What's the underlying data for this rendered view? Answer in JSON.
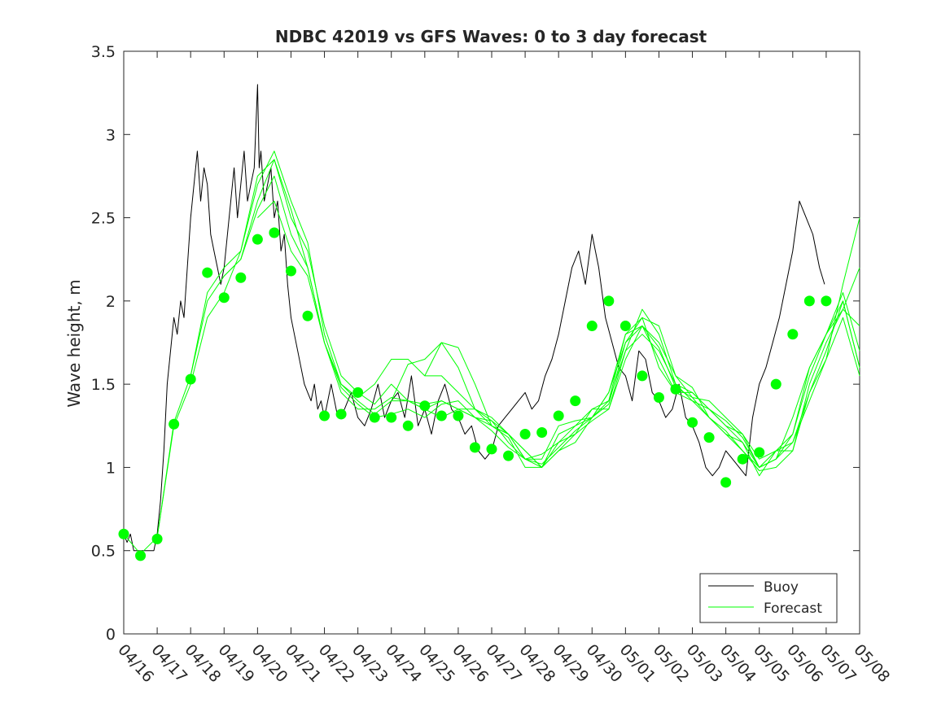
{
  "chart_data": {
    "type": "line",
    "title": "NDBC 42019 vs GFS Waves: 0 to 3 day forecast",
    "xlabel": "",
    "ylabel": "Wave height, m",
    "xlim": [
      0,
      22
    ],
    "ylim": [
      0,
      3.5
    ],
    "yticks": [
      0,
      0.5,
      1,
      1.5,
      2,
      2.5,
      3,
      3.5
    ],
    "x_tick_labels": [
      "04/16",
      "04/17",
      "04/18",
      "04/19",
      "04/20",
      "04/21",
      "04/22",
      "04/23",
      "04/24",
      "04/25",
      "04/26",
      "04/27",
      "04/28",
      "04/29",
      "04/30",
      "05/01",
      "05/02",
      "05/03",
      "05/04",
      "05/05",
      "05/06",
      "05/07",
      "05/08"
    ],
    "x_units": "days since 04/16",
    "legend": {
      "position": "bottom-right",
      "entries": [
        "Buoy",
        "Forecast"
      ]
    },
    "colors": {
      "buoy": "#000000",
      "forecast": "#00ff00"
    },
    "series": [
      {
        "name": "Buoy",
        "x": [
          0,
          0.1,
          0.2,
          0.3,
          0.5,
          0.7,
          0.9,
          1.0,
          1.1,
          1.2,
          1.3,
          1.4,
          1.5,
          1.6,
          1.7,
          1.8,
          1.9,
          2.0,
          2.1,
          2.2,
          2.3,
          2.4,
          2.5,
          2.6,
          2.7,
          2.8,
          2.9,
          3.0,
          3.1,
          3.2,
          3.3,
          3.4,
          3.5,
          3.6,
          3.7,
          3.8,
          3.9,
          4.0,
          4.05,
          4.1,
          4.2,
          4.3,
          4.4,
          4.5,
          4.6,
          4.7,
          4.8,
          4.9,
          5.0,
          5.1,
          5.2,
          5.3,
          5.4,
          5.5,
          5.6,
          5.7,
          5.8,
          5.9,
          6.0,
          6.2,
          6.4,
          6.6,
          6.8,
          7.0,
          7.2,
          7.4,
          7.6,
          7.8,
          8.0,
          8.2,
          8.4,
          8.6,
          8.8,
          9.0,
          9.2,
          9.4,
          9.6,
          9.8,
          10.0,
          10.2,
          10.4,
          10.6,
          10.8,
          11.0,
          11.2,
          11.4,
          11.6,
          11.8,
          12.0,
          12.2,
          12.4,
          12.6,
          12.8,
          13.0,
          13.2,
          13.4,
          13.6,
          13.8,
          14.0,
          14.2,
          14.4,
          14.6,
          14.8,
          15.0,
          15.2,
          15.4,
          15.6,
          15.8,
          16.0,
          16.2,
          16.4,
          16.6,
          16.8,
          17.0,
          17.2,
          17.4,
          17.6,
          17.8,
          18.0,
          18.2,
          18.4,
          18.6,
          18.8,
          19.0,
          19.2,
          19.4,
          19.6,
          19.8,
          20.0,
          20.2,
          20.4,
          20.6,
          20.8,
          20.95
        ],
        "y": [
          0.6,
          0.55,
          0.6,
          0.5,
          0.5,
          0.5,
          0.5,
          0.6,
          0.8,
          1.1,
          1.5,
          1.7,
          1.9,
          1.8,
          2.0,
          1.9,
          2.2,
          2.5,
          2.7,
          2.9,
          2.6,
          2.8,
          2.7,
          2.4,
          2.3,
          2.2,
          2.1,
          2.2,
          2.4,
          2.6,
          2.8,
          2.5,
          2.7,
          2.9,
          2.6,
          2.7,
          2.8,
          3.3,
          2.8,
          2.9,
          2.6,
          2.7,
          2.8,
          2.5,
          2.6,
          2.3,
          2.4,
          2.1,
          1.9,
          1.8,
          1.7,
          1.6,
          1.5,
          1.45,
          1.4,
          1.5,
          1.35,
          1.4,
          1.3,
          1.5,
          1.3,
          1.35,
          1.45,
          1.3,
          1.25,
          1.35,
          1.5,
          1.3,
          1.4,
          1.45,
          1.3,
          1.55,
          1.25,
          1.35,
          1.2,
          1.4,
          1.5,
          1.35,
          1.3,
          1.2,
          1.25,
          1.1,
          1.05,
          1.1,
          1.25,
          1.3,
          1.35,
          1.4,
          1.45,
          1.35,
          1.4,
          1.55,
          1.65,
          1.8,
          2.0,
          2.2,
          2.3,
          2.1,
          2.4,
          2.2,
          1.9,
          1.75,
          1.6,
          1.55,
          1.4,
          1.7,
          1.65,
          1.45,
          1.4,
          1.3,
          1.35,
          1.5,
          1.3,
          1.25,
          1.15,
          1.0,
          0.95,
          1.0,
          1.1,
          1.05,
          1.0,
          0.95,
          1.3,
          1.5,
          1.6,
          1.75,
          1.9,
          2.1,
          2.3,
          2.6,
          2.5,
          2.4,
          2.2,
          2.1
        ]
      },
      {
        "name": "Forecast",
        "x": [
          0,
          0.5,
          1.0,
          1.5,
          2.0,
          2.5,
          3.0,
          3.5,
          4.0,
          4.5,
          5.0,
          5.5,
          6.0,
          6.5,
          7.0,
          7.5,
          8.0,
          8.5,
          9.0,
          9.5,
          10.0,
          10.5,
          11.0,
          11.5,
          12.0,
          12.5,
          13.0,
          13.5,
          14.0,
          14.5,
          15.0,
          15.5,
          16.0,
          16.5,
          17.0,
          17.5,
          18.0,
          18.5,
          19.0,
          19.5,
          20.0,
          20.5,
          21.0,
          21.5,
          22.0
        ],
        "y": [
          0.6,
          0.48,
          0.58,
          1.27,
          1.55,
          2.0,
          2.15,
          2.25,
          2.6,
          2.85,
          2.55,
          2.2,
          1.75,
          1.45,
          1.35,
          1.35,
          1.42,
          1.4,
          1.35,
          1.3,
          1.35,
          1.3,
          1.28,
          1.2,
          1.05,
          1.05,
          1.25,
          1.28,
          1.3,
          1.45,
          1.75,
          1.9,
          1.85,
          1.55,
          1.42,
          1.4,
          1.3,
          1.2,
          1.0,
          1.1,
          1.1,
          1.5,
          1.75,
          1.95,
          1.85
        ]
      },
      {
        "name": "Forecast",
        "x": [
          1.0,
          1.5,
          2.0,
          2.5,
          3.0,
          3.5,
          4.0,
          4.5,
          5.0,
          5.5,
          6.0,
          6.5,
          7.0,
          7.5,
          8.0,
          8.5,
          9.0,
          9.5,
          10.0,
          10.5,
          11.0,
          11.5,
          12.0,
          12.5,
          13.0,
          13.5,
          14.0,
          14.5,
          15.0,
          15.5,
          16.0,
          16.5,
          17.0,
          17.5,
          18.0,
          18.5,
          19.0,
          19.5,
          20.0,
          20.5,
          21.0,
          21.5,
          22.0
        ],
        "y": [
          0.58,
          1.25,
          1.5,
          1.9,
          2.05,
          2.3,
          2.7,
          2.9,
          2.6,
          2.35,
          1.8,
          1.5,
          1.42,
          1.5,
          1.65,
          1.65,
          1.55,
          1.55,
          1.45,
          1.35,
          1.28,
          1.15,
          1.05,
          1.0,
          1.2,
          1.25,
          1.3,
          1.4,
          1.7,
          1.95,
          1.8,
          1.5,
          1.4,
          1.35,
          1.25,
          1.15,
          1.0,
          1.05,
          1.15,
          1.45,
          1.7,
          2.0,
          1.6
        ]
      },
      {
        "name": "Forecast",
        "x": [
          2.0,
          2.5,
          3.0,
          3.5,
          4.0,
          4.5,
          5.0,
          5.5,
          6.0,
          6.5,
          7.0,
          7.5,
          8.0,
          8.5,
          9.0,
          9.5,
          10.0,
          10.5,
          11.0,
          11.5,
          12.0,
          12.5,
          13.0,
          13.5,
          14.0,
          14.5,
          15.0,
          15.5,
          16.0,
          16.5,
          17.0,
          17.5,
          18.0,
          18.5,
          19.0,
          19.5,
          20.0,
          20.5,
          21.0,
          21.5,
          22.0
        ],
        "y": [
          1.55,
          2.05,
          2.2,
          2.3,
          2.75,
          2.85,
          2.5,
          2.3,
          1.85,
          1.55,
          1.45,
          1.38,
          1.5,
          1.4,
          1.38,
          1.4,
          1.35,
          1.35,
          1.25,
          1.2,
          1.1,
          1.0,
          1.1,
          1.2,
          1.28,
          1.35,
          1.65,
          1.85,
          1.75,
          1.55,
          1.48,
          1.3,
          1.2,
          1.15,
          0.95,
          1.1,
          1.15,
          1.4,
          1.65,
          1.9,
          1.55
        ]
      },
      {
        "name": "Forecast",
        "x": [
          3.0,
          3.5,
          4.0,
          4.5,
          5.0,
          5.5,
          6.0,
          6.5,
          7.0,
          7.5,
          8.0,
          8.5,
          9.0,
          9.5,
          10.0,
          10.5,
          11.0,
          11.5,
          12.0,
          12.5,
          13.0,
          13.5,
          14.0,
          14.5,
          15.0,
          15.5,
          16.0,
          16.5,
          17.0,
          17.5,
          18.0,
          18.5,
          19.0,
          19.5,
          20.0,
          20.5,
          21.0,
          21.5,
          22.0
        ],
        "y": [
          2.15,
          2.25,
          2.55,
          2.75,
          2.4,
          2.2,
          1.75,
          1.5,
          1.4,
          1.32,
          1.4,
          1.4,
          1.35,
          1.4,
          1.35,
          1.3,
          1.25,
          1.2,
          1.1,
          1.0,
          1.15,
          1.2,
          1.35,
          1.35,
          1.7,
          1.8,
          1.7,
          1.5,
          1.45,
          1.35,
          1.28,
          1.18,
          1.0,
          1.05,
          1.2,
          1.55,
          1.8,
          2.05,
          1.7
        ]
      },
      {
        "name": "Forecast",
        "x": [
          4.0,
          4.5,
          5.0,
          5.5,
          6.0,
          6.5,
          7.0,
          7.5,
          8.0,
          8.5,
          9.0,
          9.5,
          10.0,
          10.5,
          11.0,
          11.5,
          12.0,
          12.5,
          13.0,
          13.5,
          14.0,
          14.5,
          15.0,
          15.5,
          16.0,
          16.5,
          17.0,
          17.5,
          18.0,
          18.5,
          19.0,
          19.5,
          20.0,
          20.5,
          21.0,
          21.5,
          22.0
        ],
        "y": [
          2.5,
          2.6,
          2.3,
          2.15,
          1.75,
          1.48,
          1.38,
          1.3,
          1.32,
          1.35,
          1.3,
          1.38,
          1.4,
          1.3,
          1.22,
          1.12,
          1.05,
          1.02,
          1.12,
          1.22,
          1.3,
          1.38,
          1.75,
          1.85,
          1.72,
          1.48,
          1.42,
          1.3,
          1.22,
          1.1,
          0.98,
          1.0,
          1.1,
          1.45,
          1.65,
          2.1,
          2.5
        ]
      },
      {
        "name": "Forecast",
        "x": [
          8.0,
          8.5,
          9.0,
          9.5,
          10.0,
          10.5,
          11.0,
          11.5,
          12.0,
          12.5,
          13.0,
          13.5,
          14.0,
          14.5,
          15.0,
          15.5,
          16.0,
          16.5,
          17.0,
          17.5,
          18.0,
          18.5,
          19.0,
          19.5,
          20.0,
          20.5,
          21.0,
          21.5,
          22.0
        ],
        "y": [
          1.4,
          1.62,
          1.65,
          1.75,
          1.6,
          1.35,
          1.3,
          1.2,
          1.05,
          1.08,
          1.15,
          1.25,
          1.35,
          1.4,
          1.8,
          1.85,
          1.65,
          1.45,
          1.45,
          1.35,
          1.25,
          1.2,
          1.05,
          1.1,
          1.2,
          1.6,
          1.8,
          1.95,
          2.2
        ]
      },
      {
        "name": "Forecast",
        "x": [
          9.0,
          9.5,
          10.0,
          10.5,
          11.0,
          11.5,
          12.0,
          12.5,
          13.0,
          13.5,
          14.0,
          14.5,
          15.0,
          15.5,
          16.0,
          16.5,
          17.0,
          17.5,
          18.0,
          18.5,
          19.0,
          19.5,
          20.0,
          20.5,
          21.0,
          21.5,
          22.0
        ],
        "y": [
          1.55,
          1.75,
          1.72,
          1.5,
          1.25,
          1.18,
          1.0,
          1.0,
          1.1,
          1.15,
          1.3,
          1.45,
          1.8,
          1.9,
          1.6,
          1.45,
          1.4,
          1.3,
          1.2,
          1.1,
          1.0,
          1.05,
          1.3,
          1.6,
          1.8,
          2.0,
          1.6
        ]
      }
    ],
    "markers": {
      "name": "Forecast",
      "x": [
        0,
        0.5,
        1.0,
        1.5,
        2.0,
        2.5,
        3.0,
        3.5,
        4.0,
        4.5,
        5.0,
        5.5,
        6.0,
        6.5,
        7.0,
        7.5,
        8.0,
        8.5,
        9.0,
        9.5,
        10.0,
        10.5,
        11.0,
        11.5,
        12.0,
        12.5,
        13.0,
        13.5,
        14.0,
        14.5,
        15.0,
        15.5,
        16.0,
        16.5,
        17.0,
        17.5,
        18.0,
        18.5,
        19.0,
        19.5,
        20.0,
        20.5,
        21.0
      ],
      "y": [
        0.6,
        0.47,
        0.57,
        1.26,
        1.53,
        2.17,
        2.02,
        2.14,
        2.37,
        2.41,
        2.18,
        1.91,
        1.31,
        1.32,
        1.45,
        1.3,
        1.3,
        1.25,
        1.37,
        1.31,
        1.31,
        1.12,
        1.11,
        1.07,
        1.2,
        1.21,
        1.31,
        1.4,
        1.85,
        2.0,
        1.85,
        1.55,
        1.42,
        1.47,
        1.27,
        1.18,
        0.91,
        1.05,
        1.09,
        1.5,
        1.8,
        2.0,
        2.0
      ]
    }
  }
}
